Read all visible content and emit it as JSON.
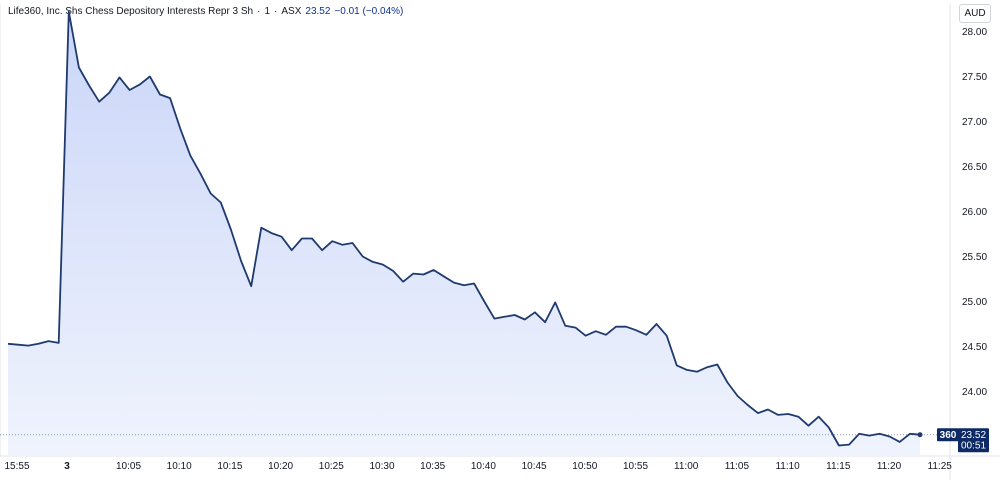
{
  "legend": {
    "name": "Life360, Inc. Shs Chess Depository Interests Repr 3 Sh",
    "interval": "1",
    "exchange": "ASX",
    "price": "23.52",
    "change": "−0.01 (−0.04%)"
  },
  "currency": "AUD",
  "last_label": {
    "symbol": "360",
    "price": "23.52",
    "countdown": "00:51"
  },
  "colors": {
    "line": "#1e3a6e",
    "fill_top": "#c7d3f8",
    "fill_bottom": "#eef2fd",
    "badge": "#0d2a66"
  },
  "chart_data": {
    "type": "area",
    "y_ticks": [
      24.0,
      24.5,
      25.0,
      25.5,
      26.0,
      26.5,
      27.0,
      27.5,
      28.0
    ],
    "ylim": [
      23.35,
      28.35
    ],
    "x_tick_labels": [
      "15:55",
      "3",
      "10:05",
      "10:10",
      "10:15",
      "10:20",
      "10:25",
      "10:30",
      "10:35",
      "10:40",
      "10:45",
      "10:50",
      "10:55",
      "11:00",
      "11:05",
      "11:10",
      "11:15",
      "11:20",
      "11:25"
    ],
    "last_value": 23.52,
    "values": [
      24.53,
      24.52,
      24.51,
      24.53,
      24.56,
      24.54,
      28.22,
      27.6,
      27.4,
      27.22,
      27.32,
      27.49,
      27.35,
      27.41,
      27.5,
      27.3,
      27.26,
      26.92,
      26.62,
      26.42,
      26.2,
      26.1,
      25.8,
      25.45,
      25.17,
      25.82,
      25.76,
      25.72,
      25.57,
      25.7,
      25.7,
      25.57,
      25.67,
      25.63,
      25.65,
      25.5,
      25.44,
      25.41,
      25.34,
      25.22,
      25.31,
      25.3,
      25.35,
      25.28,
      25.21,
      25.18,
      25.2,
      25.0,
      24.81,
      24.83,
      24.85,
      24.8,
      24.88,
      24.77,
      24.99,
      24.73,
      24.71,
      24.62,
      24.67,
      24.63,
      24.72,
      24.72,
      24.68,
      24.63,
      24.75,
      24.62,
      24.29,
      24.24,
      24.22,
      24.27,
      24.3,
      24.1,
      23.95,
      23.85,
      23.76,
      23.8,
      23.74,
      23.75,
      23.72,
      23.62,
      23.72,
      23.6,
      23.4,
      23.41,
      23.53,
      23.51,
      23.53,
      23.5,
      23.44,
      23.53,
      23.52
    ]
  }
}
